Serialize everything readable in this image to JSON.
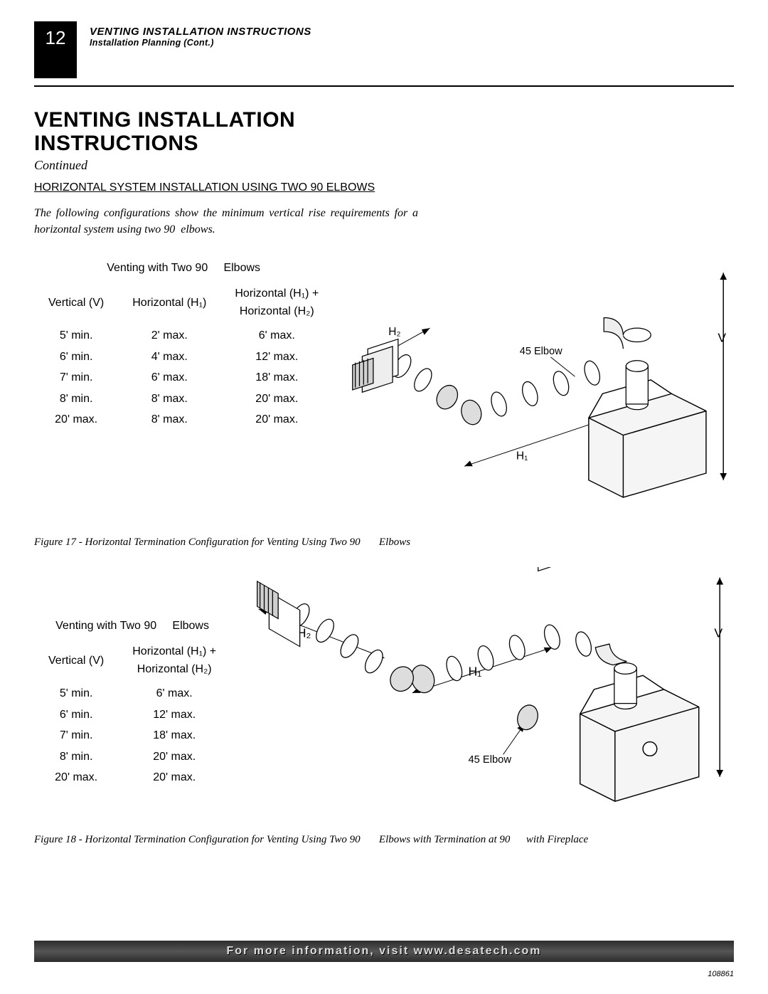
{
  "page_number": "12",
  "header_line1": "VENTING INSTALLATION INSTRUCTIONS",
  "header_line2": "Installation Planning (Cont.)",
  "title_line1": "VENTING INSTALLATION",
  "title_line2": "INSTRUCTIONS",
  "continued": "Continued",
  "subheading": "HORIZONTAL SYSTEM INSTALLATION USING TWO 90 ELBOWS",
  "body": "The following configurations show the minimum vertical rise requirements for a horizontal system using two 90  elbows.",
  "table1": {
    "title": "Venting with Two 90     Elbows",
    "col1": "Vertical (V)",
    "col2": "Horizontal (H₁)",
    "col3a": "Horizontal (H₁) +",
    "col3b": "Horizontal (H₂)",
    "rows": [
      [
        "5' min.",
        "2' max.",
        "6' max."
      ],
      [
        "6' min.",
        "4' max.",
        "12' max."
      ],
      [
        "7' min.",
        "6' max.",
        "18' max."
      ],
      [
        "8' min.",
        "8' max.",
        "20' max."
      ],
      [
        "20' max.",
        "8' max.",
        "20' max."
      ]
    ]
  },
  "diagram1": {
    "h2_label": "H₂",
    "h1_label": "H₁",
    "v_label": "V",
    "elbow_label": "45 Elbow"
  },
  "fig17_caption": "Figure 17 - Horizontal Termination Configuration for Venting Using Two 90       Elbows",
  "table2": {
    "title": "Venting with Two 90     Elbows",
    "col1": "Vertical (V)",
    "col2a": "Horizontal (H₁) +",
    "col2b": "Horizontal (H₂)",
    "rows": [
      [
        "5' min.",
        "6' max."
      ],
      [
        "6' min.",
        "12' max."
      ],
      [
        "7' min.",
        "18' max."
      ],
      [
        "8' min.",
        "20' max."
      ],
      [
        "20' max.",
        "20' max."
      ]
    ]
  },
  "diagram2": {
    "h2_label": "H₂",
    "h1_label": "H₁",
    "v_label": "V",
    "elbow_label": "45  Elbow"
  },
  "fig18_caption": "Figure 18 - Horizontal Termination Configuration for Venting Using Two 90       Elbows with Termination at 90       with Fireplace",
  "footer": "For more information, visit www.desatech.com",
  "doc_id": "108861",
  "colors": {
    "black": "#000000",
    "gray_fill": "#e5e5e5",
    "light_stroke": "#808080"
  }
}
